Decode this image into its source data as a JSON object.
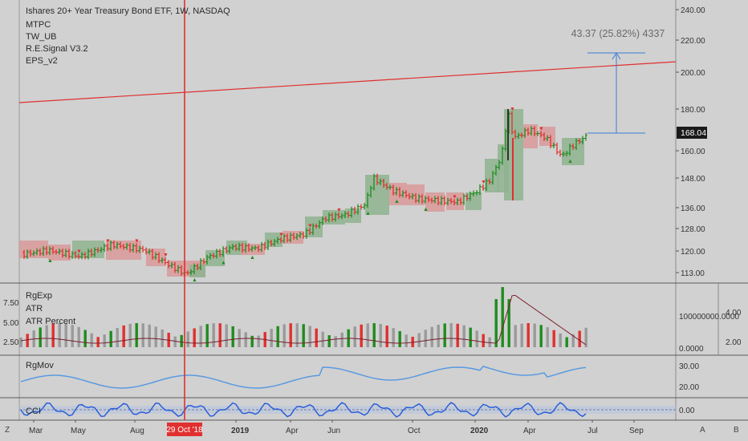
{
  "main": {
    "title": "Ishares 20+ Year Treasury Bond ETF, 1W, NASDAQ",
    "indicators": [
      "MTPC",
      "TW_UB",
      "R.E.Signal V3.2",
      "EPS_v2"
    ],
    "measure_text": "43.37 (25.82%) 4337",
    "price_badge": "168.04",
    "price_ticks": [
      "240.00",
      "220.00",
      "200.00",
      "180.00",
      "160.00",
      "148.00",
      "136.00",
      "128.00",
      "120.00",
      "113.00"
    ]
  },
  "pane_rg": {
    "legend": [
      "RgExp",
      "ATR",
      "ATR Percent"
    ],
    "left_ticks": [
      "7.50",
      "5.00",
      "2.50"
    ],
    "right_ticks": [
      "100000000.0000",
      "0.0000"
    ],
    "right2_ticks": [
      "4.00",
      "2.00"
    ]
  },
  "pane_mov": {
    "legend": "RgMov",
    "ticks": [
      "30.00",
      "20.00"
    ]
  },
  "pane_cci": {
    "legend": "CCI",
    "ticks": [
      "0.00"
    ]
  },
  "time_axis": {
    "labels": [
      "Mar",
      "May",
      "Aug",
      "2019",
      "Apr",
      "Jun",
      "Oct",
      "2020",
      "Apr",
      "Jul",
      "Sep"
    ],
    "highlight": "29 Oct '18"
  },
  "corner": {
    "left": "Z",
    "right_a": "A",
    "right_b": "B"
  },
  "colors": {
    "up": "#1e8c1e",
    "down": "#e0302f",
    "box_up": "#8fb38f",
    "box_down": "#d99a9a",
    "measure": "#3a7bd5",
    "trend": "#e0302f"
  },
  "chart_data": {
    "type": "bar",
    "title": "Ishares 20+ Year Treasury Bond ETF, 1W, NASDAQ",
    "last_price": 168.04,
    "price_range_visible": [
      113,
      240
    ],
    "measurement": {
      "change": 43.37,
      "percent": 25.82,
      "bars": 4337
    }
  }
}
